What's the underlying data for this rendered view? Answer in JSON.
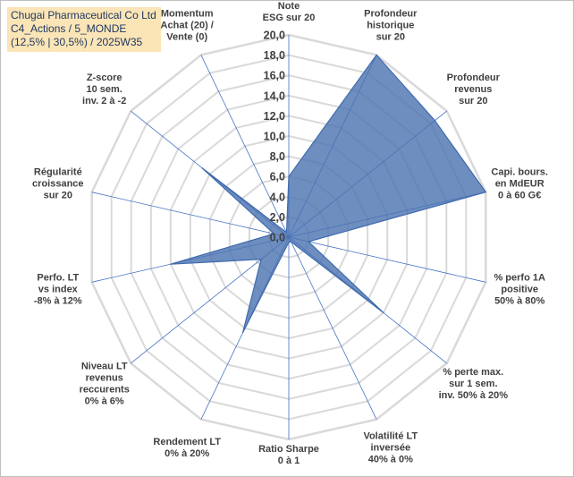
{
  "header": {
    "line1": "Chugai Pharmaceutical Co Ltd",
    "line2": "C4_Actions / 5_MONDE",
    "line3": "(12,5% | 30,5%) / 2025W35"
  },
  "chart_data": {
    "type": "radar",
    "axes": [
      {
        "name": "note-esg",
        "lines": [
          "Note",
          "ESG sur 20"
        ]
      },
      {
        "name": "profondeur-historique",
        "lines": [
          "Profondeur",
          "historique",
          "sur 20"
        ]
      },
      {
        "name": "profondeur-revenus",
        "lines": [
          "Profondeur",
          "revenus",
          "sur 20"
        ]
      },
      {
        "name": "capi-bours",
        "lines": [
          "Capi. bours.",
          "en MdEUR",
          "0 à 60 G€"
        ]
      },
      {
        "name": "perfo-1a-positive",
        "lines": [
          "% perfo 1A",
          "positive",
          "50% à 80%"
        ]
      },
      {
        "name": "perte-max",
        "lines": [
          "% perte max.",
          "sur 1 sem.",
          "inv. 50% à 20%"
        ]
      },
      {
        "name": "volatilite-lt",
        "lines": [
          "Volatilité LT",
          "inversée",
          "40% à 0%"
        ]
      },
      {
        "name": "ratio-sharpe",
        "lines": [
          "Ratio Sharpe",
          "0 à 1"
        ]
      },
      {
        "name": "rendement-lt",
        "lines": [
          "Rendement LT",
          "0% à 20%"
        ]
      },
      {
        "name": "niveau-lt-revenus",
        "lines": [
          "Niveau LT",
          "revenus",
          "reccurents",
          "0% à 6%"
        ]
      },
      {
        "name": "perfo-lt-vs-index",
        "lines": [
          "Perfo. LT",
          "vs index",
          "-8% à 12%"
        ]
      },
      {
        "name": "regularite-croissance",
        "lines": [
          "Régularité",
          "croissance",
          "sur 20"
        ]
      },
      {
        "name": "z-score",
        "lines": [
          "Z-score",
          "10 sem.",
          "inv. 2 à -2"
        ]
      },
      {
        "name": "momentum",
        "lines": [
          "Momentum",
          "Achat (20) /",
          "Vente (0)"
        ]
      }
    ],
    "values": [
      6.0,
      20.0,
      18.5,
      20.0,
      2.0,
      12.0,
      0.5,
      0.5,
      10.5,
      3.5,
      12.0,
      1.5,
      11.0,
      0.5
    ],
    "tick_labels": [
      "0,0",
      "2,0",
      "4,0",
      "6,0",
      "8,0",
      "10,0",
      "12,0",
      "14,0",
      "16,0",
      "18,0",
      "20,0"
    ],
    "ylim": [
      0,
      20
    ],
    "tick_step": 2,
    "grid": true,
    "colors": {
      "fill": "#4a72b0",
      "fill_opacity": 0.8,
      "stroke": "#3e6aad",
      "grid": "#d9d9d9",
      "spoke": "#4472c4",
      "title_bg": "#fbe5b6",
      "title_text": "#1f3864"
    }
  }
}
